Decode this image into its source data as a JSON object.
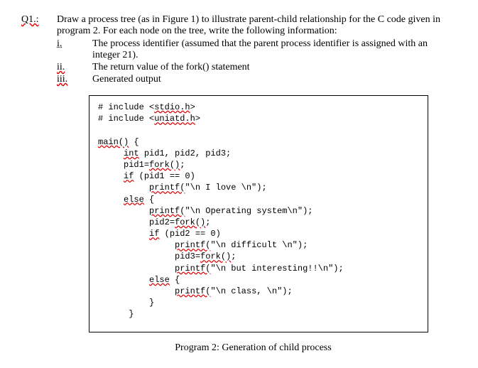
{
  "question": {
    "label": "Q1.:",
    "intro": "Draw a process tree (as in Figure 1) to illustrate parent-child relationship for the C code given in program 2.  For each node on the tree, write the following information:",
    "items": [
      {
        "num": "i.",
        "text": "The process identifier (assumed that the parent process identifier is assigned with an integer 21)."
      },
      {
        "num": "ii.",
        "text": "The return value of the fork() statement"
      },
      {
        "num": "iii.",
        "text": "Generated output"
      }
    ]
  },
  "code": {
    "l1a": "# include <",
    "l1b": "stdio.h",
    "l1c": ">",
    "l2a": "# include <",
    "l2b": "uniatd.h",
    "l2c": ">",
    "l3a": "main()",
    "l3b": " {",
    "l4a": "int",
    "l4b": " pid1, pid2, pid3;",
    "l5a": "pid1=",
    "l5b": "fork()",
    "l5c": ";",
    "l6a": "if",
    "l6b": " (pid1 == 0)",
    "l7a": "printf(",
    "l7b": "\"\\n I love \\n\");",
    "l8a": "else",
    "l8b": " {",
    "l9a": "printf(",
    "l9b": "\"\\n Operating system\\n\");",
    "l10a": "pid2=",
    "l10b": "fork()",
    "l10c": ";",
    "l11a": "if",
    "l11b": " (pid2 == 0)",
    "l12a": "printf(",
    "l12b": "\"\\n difficult \\n\");",
    "l13a": "pid3=",
    "l13b": "fork()",
    "l13c": ";",
    "l14a": "printf(",
    "l14b": "\"\\n but interesting!!\\n\");",
    "l15a": "else",
    "l15b": " {",
    "l16a": "printf(",
    "l16b": "\"\\n class, \\n\");",
    "l17": "}",
    "l18": "}"
  },
  "caption": "Program 2: Generation of child process"
}
